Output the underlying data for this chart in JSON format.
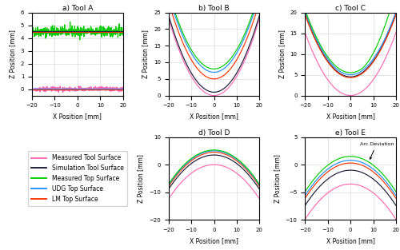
{
  "colors": {
    "measured_tool": "#FF69B4",
    "simulation_tool": "#1A1A3A",
    "measured_top": "#00CC00",
    "udg_top": "#1E90FF",
    "lm_top": "#FF3300"
  },
  "legend_labels": [
    "Measured Tool Surface",
    "Simulation Tool Surface",
    "Measured Top Surface",
    "UDG Top Surface",
    "LM Top Surface"
  ],
  "titles": [
    "a) Tool A",
    "b) Tool B",
    "c) Tool C",
    "d) Tool D",
    "e) Tool E"
  ],
  "xlabel": "X Position [mm]",
  "ylabel": "Z Position [mm]"
}
